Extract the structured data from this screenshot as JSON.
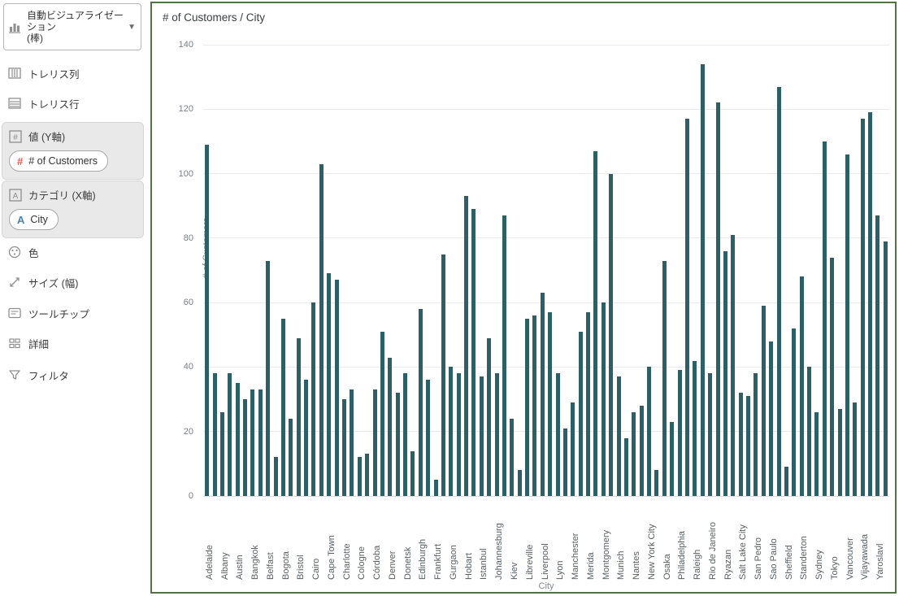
{
  "sidebar": {
    "auto_viz": {
      "label": "自動ビジュアライゼーション",
      "sub": "(棒)"
    },
    "items": [
      {
        "label": "トレリス列",
        "icon": "trellis-columns-icon"
      },
      {
        "label": "トレリス行",
        "icon": "trellis-rows-icon"
      },
      {
        "label": "色",
        "icon": "color-icon"
      },
      {
        "label": "サイズ (幅)",
        "icon": "size-icon"
      },
      {
        "label": "ツールチップ",
        "icon": "tooltip-icon"
      },
      {
        "label": "詳細",
        "icon": "detail-icon"
      },
      {
        "label": "フィルタ",
        "icon": "filter-icon"
      }
    ],
    "value_section": {
      "title": "値 (Y軸)",
      "pill": "# of Customers",
      "pill_glyph": "#"
    },
    "category_section": {
      "title": "カテゴリ (X軸)",
      "pill": "City",
      "pill_glyph": "A"
    }
  },
  "chart_data": {
    "type": "bar",
    "title": "# of Customers / City",
    "ylabel": "# of Customers",
    "xlabel": "City",
    "ylim": [
      0,
      140
    ],
    "yticks": [
      0,
      20,
      40,
      60,
      80,
      100,
      120,
      140
    ],
    "grid": true,
    "legend": false,
    "bar_color": "#2c5f66",
    "bars_per_category": 2,
    "categories": [
      "Adelaide",
      "Albany",
      "Austin",
      "Bangkok",
      "Belfast",
      "Bogota",
      "Bristol",
      "Cairo",
      "Cape Town",
      "Charlotte",
      "Cologne",
      "Córdoba",
      "Denver",
      "Donetsk",
      "Edinburgh",
      "Frankfurt",
      "Gurgaon",
      "Hobart",
      "Istanbul",
      "Johannesburg",
      "Kiev",
      "Libreville",
      "Liverpool",
      "Lyon",
      "Manchester",
      "Merida",
      "Montgomery",
      "Munich",
      "Nantes",
      "New York City",
      "Osaka",
      "Philadelphia",
      "Raleigh",
      "Rio de Janeiro",
      "Ryazan",
      "Salt Lake City",
      "San Pedro",
      "Sao Paulo",
      "Sheffield",
      "Standerton",
      "Sydney",
      "Tokyo",
      "Vancouver",
      "Vijayawada",
      "Yaroslavl"
    ],
    "values": [
      109,
      38,
      26,
      38,
      35,
      30,
      33,
      33,
      73,
      12,
      55,
      24,
      49,
      36,
      60,
      103,
      69,
      67,
      30,
      33,
      12,
      13,
      33,
      51,
      43,
      32,
      38,
      14,
      58,
      36,
      5,
      75,
      40,
      38,
      93,
      89,
      37,
      49,
      38,
      87,
      24,
      8,
      55,
      56,
      63,
      57,
      38,
      21,
      29,
      51,
      57,
      107,
      60,
      100,
      37,
      18,
      26,
      28,
      40,
      8,
      73,
      23,
      39,
      117,
      42,
      134,
      38,
      122,
      76,
      81,
      32,
      31,
      38,
      59,
      48,
      127,
      9,
      52,
      68,
      40,
      26,
      110,
      74,
      27,
      106,
      29,
      117,
      119,
      87,
      79
    ]
  }
}
